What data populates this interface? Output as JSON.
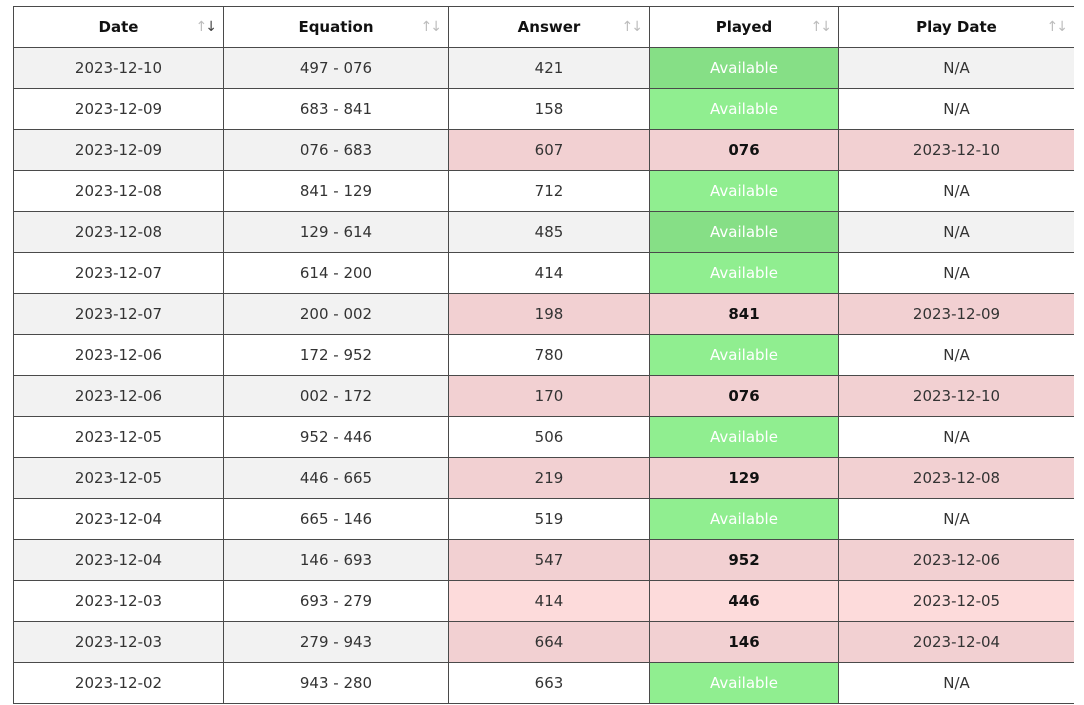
{
  "columns": [
    "Date",
    "Equation",
    "Answer",
    "Played",
    "Play Date"
  ],
  "sort": {
    "column": 0,
    "direction": "desc"
  },
  "available_label": "Available",
  "rows": [
    {
      "date": "2023-12-10",
      "equation": "497 - 076",
      "answer": "421",
      "played": "Available",
      "play_date": "N/A"
    },
    {
      "date": "2023-12-09",
      "equation": "683 - 841",
      "answer": "158",
      "played": "Available",
      "play_date": "N/A"
    },
    {
      "date": "2023-12-09",
      "equation": "076 - 683",
      "answer": "607",
      "played": "076",
      "play_date": "2023-12-10"
    },
    {
      "date": "2023-12-08",
      "equation": "841 - 129",
      "answer": "712",
      "played": "Available",
      "play_date": "N/A"
    },
    {
      "date": "2023-12-08",
      "equation": "129 - 614",
      "answer": "485",
      "played": "Available",
      "play_date": "N/A"
    },
    {
      "date": "2023-12-07",
      "equation": "614 - 200",
      "answer": "414",
      "played": "Available",
      "play_date": "N/A"
    },
    {
      "date": "2023-12-07",
      "equation": "200 - 002",
      "answer": "198",
      "played": "841",
      "play_date": "2023-12-09"
    },
    {
      "date": "2023-12-06",
      "equation": "172 - 952",
      "answer": "780",
      "played": "Available",
      "play_date": "N/A"
    },
    {
      "date": "2023-12-06",
      "equation": "002 - 172",
      "answer": "170",
      "played": "076",
      "play_date": "2023-12-10"
    },
    {
      "date": "2023-12-05",
      "equation": "952 - 446",
      "answer": "506",
      "played": "Available",
      "play_date": "N/A"
    },
    {
      "date": "2023-12-05",
      "equation": "446 - 665",
      "answer": "219",
      "played": "129",
      "play_date": "2023-12-08"
    },
    {
      "date": "2023-12-04",
      "equation": "665 - 146",
      "answer": "519",
      "played": "Available",
      "play_date": "N/A"
    },
    {
      "date": "2023-12-04",
      "equation": "146 - 693",
      "answer": "547",
      "played": "952",
      "play_date": "2023-12-06"
    },
    {
      "date": "2023-12-03",
      "equation": "693 - 279",
      "answer": "414",
      "played": "446",
      "play_date": "2023-12-05"
    },
    {
      "date": "2023-12-03",
      "equation": "279 - 943",
      "answer": "664",
      "played": "146",
      "play_date": "2023-12-04"
    },
    {
      "date": "2023-12-02",
      "equation": "943 - 280",
      "answer": "663",
      "played": "Available",
      "play_date": "N/A"
    }
  ]
}
